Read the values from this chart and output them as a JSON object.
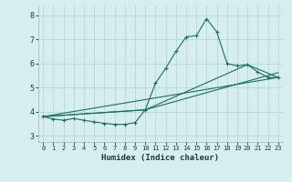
{
  "xlabel": "Humidex (Indice chaleur)",
  "bg_color": "#d6eeee",
  "line_color": "#1a6e64",
  "xlim": [
    -0.5,
    23.5
  ],
  "ylim": [
    2.75,
    8.4
  ],
  "xticks": [
    0,
    1,
    2,
    3,
    4,
    5,
    6,
    7,
    8,
    9,
    10,
    11,
    12,
    13,
    14,
    15,
    16,
    17,
    18,
    19,
    20,
    21,
    22,
    23
  ],
  "yticks": [
    3,
    4,
    5,
    6,
    7,
    8
  ],
  "main_x": [
    0,
    1,
    2,
    3,
    4,
    5,
    6,
    7,
    8,
    9,
    10,
    11,
    12,
    13,
    14,
    15,
    16,
    17,
    18,
    19,
    20,
    21,
    22,
    23
  ],
  "main_y": [
    3.8,
    3.7,
    3.65,
    3.72,
    3.65,
    3.58,
    3.52,
    3.48,
    3.48,
    3.55,
    4.08,
    5.18,
    5.8,
    6.5,
    7.1,
    7.15,
    7.85,
    7.3,
    6.0,
    5.9,
    5.95,
    5.65,
    5.42,
    5.42
  ],
  "line1_x": [
    0,
    23
  ],
  "line1_y": [
    3.8,
    5.42
  ],
  "line2_x": [
    0,
    10,
    23
  ],
  "line2_y": [
    3.8,
    4.08,
    5.62
  ],
  "line3_x": [
    0,
    10,
    20,
    23
  ],
  "line3_y": [
    3.8,
    4.08,
    5.95,
    5.42
  ]
}
